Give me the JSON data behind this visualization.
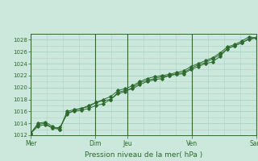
{
  "title": "",
  "xlabel": "Pression niveau de la mer( hPa )",
  "ylabel": "",
  "ylim": [
    1012,
    1029
  ],
  "yticks": [
    1012,
    1014,
    1016,
    1018,
    1020,
    1022,
    1024,
    1026,
    1028
  ],
  "background_color": "#cce8dd",
  "grid_color": "#aad4c4",
  "line_color": "#2d6a2d",
  "day_labels": [
    "Mer",
    "Dim",
    "Jeu",
    "Ven",
    "Sam"
  ],
  "day_positions": [
    0,
    96,
    144,
    240,
    336
  ],
  "xlim": [
    0,
    336
  ],
  "series": [
    [
      1012.3,
      1013.8,
      1014.0,
      1013.2,
      1013.3,
      1015.5,
      1016.2,
      1016.5,
      1016.8,
      1017.5,
      1017.8,
      1018.0,
      1019.2,
      1019.5,
      1019.8,
      1020.5,
      1021.0,
      1021.3,
      1021.5,
      1022.0,
      1022.2,
      1022.3,
      1023.0,
      1023.5,
      1024.0,
      1024.3,
      1025.2,
      1026.5,
      1027.0,
      1027.5,
      1028.1,
      1028.3
    ],
    [
      1012.3,
      1014.0,
      1014.2,
      1013.5,
      1013.0,
      1016.0,
      1016.3,
      1016.5,
      1017.0,
      1017.5,
      1018.0,
      1018.5,
      1019.5,
      1019.8,
      1020.3,
      1021.0,
      1021.5,
      1021.8,
      1022.0,
      1022.2,
      1022.5,
      1022.8,
      1023.5,
      1024.0,
      1024.5,
      1025.0,
      1025.8,
      1026.8,
      1027.2,
      1027.8,
      1028.5,
      1028.3
    ],
    [
      1012.3,
      1013.5,
      1013.8,
      1013.2,
      1013.0,
      1015.8,
      1016.0,
      1016.2,
      1016.5,
      1017.0,
      1017.3,
      1018.0,
      1019.0,
      1019.3,
      1020.0,
      1020.8,
      1021.2,
      1021.5,
      1021.8,
      1022.0,
      1022.3,
      1022.5,
      1023.2,
      1023.8,
      1024.2,
      1024.8,
      1025.5,
      1026.5,
      1027.0,
      1027.5,
      1028.2,
      1028.3
    ]
  ],
  "x_total": 336,
  "figw": 3.2,
  "figh": 2.0
}
